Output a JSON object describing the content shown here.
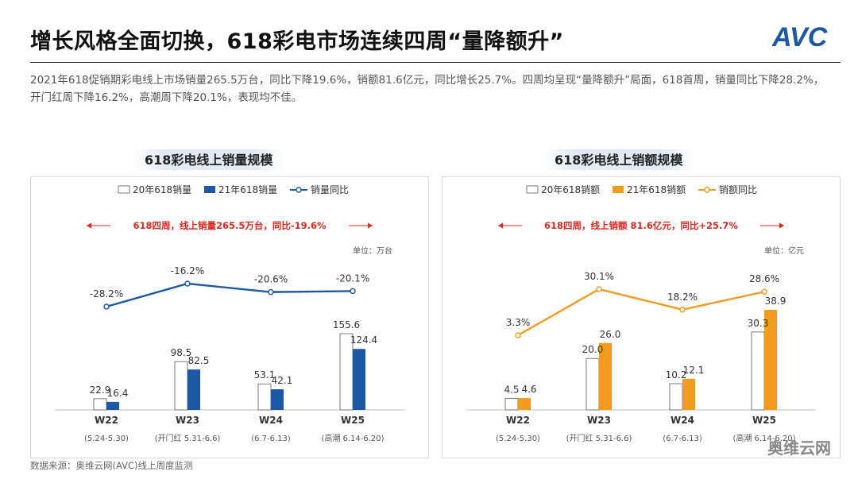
{
  "header": {
    "title": "增长风格全面切换，618彩电市场连续四周“量降额升”",
    "summary": "2021年618促销期彩电线上市场销量265.5万台，同比下降19.6%，销额81.6亿元，同比增长25.7%。四周均呈现“量降额升”局面，618首周，销量同比下降28.2%，开门红周下降16.2%，高潮周下降20.1%，表现均不佳。",
    "logo_text": "AVC"
  },
  "footer": {
    "source": "数据来源：奥维云网(AVC)线上周度监测",
    "watermark_label": "奥维云网"
  },
  "colors": {
    "blue": "#1b58a5",
    "orange": "#f49a1e",
    "red": "#d9281e",
    "axis": "#bfbfbf"
  },
  "chart_data": [
    {
      "type": "bar",
      "title": "618彩电线上销量规模",
      "unit_label": "单位：万台",
      "note": "618四周，线上销量265.5万台，同比-19.6%",
      "categories": [
        "W22",
        "W23",
        "W24",
        "W25"
      ],
      "sublabels": [
        "(5.24-5.30)",
        "(开门红 5.31-6.6)",
        "(6.7-6.13)",
        "(高潮 6.14-6.20)"
      ],
      "series": [
        {
          "name": "20年618销量",
          "values": [
            22.9,
            98.5,
            53.1,
            155.6
          ],
          "color": "#ffffff"
        },
        {
          "name": "21年618销量",
          "values": [
            16.4,
            82.5,
            42.1,
            124.4
          ],
          "color": "#1b58a5"
        }
      ],
      "line": {
        "name": "销量同比",
        "values": [
          -28.2,
          -16.2,
          -20.6,
          -20.1
        ],
        "labels": [
          "-28.2%",
          "-16.2%",
          "-20.6%",
          "-20.1%"
        ],
        "color": "#1b58a5"
      }
    },
    {
      "type": "bar",
      "title": "618彩电线上销额规模",
      "unit_label": "单位：亿元",
      "note": "618四周，线上销额 81.6亿元，同比+25.7%",
      "categories": [
        "W22",
        "W23",
        "W24",
        "W25"
      ],
      "sublabels": [
        "(5.24-5.30)",
        "(开门红 5.31-6.6)",
        "(6.7-6.13)",
        "(高潮 6.14-6.20)"
      ],
      "series": [
        {
          "name": "20年618销额",
          "values": [
            4.5,
            20.0,
            10.2,
            30.3
          ],
          "labels": [
            "4.5",
            "20.0",
            "10.2",
            "30.3"
          ],
          "color": "#ffffff"
        },
        {
          "name": "21年618销额",
          "values": [
            4.6,
            26.0,
            12.1,
            38.9
          ],
          "labels": [
            "4.6",
            "26.0",
            "12.1",
            "38.9"
          ],
          "color": "#f49a1e"
        }
      ],
      "line": {
        "name": "销额同比",
        "values": [
          3.3,
          30.1,
          18.2,
          28.6
        ],
        "labels": [
          "3.3%",
          "30.1%",
          "18.2%",
          "28.6%"
        ],
        "color": "#f49a1e"
      }
    }
  ]
}
